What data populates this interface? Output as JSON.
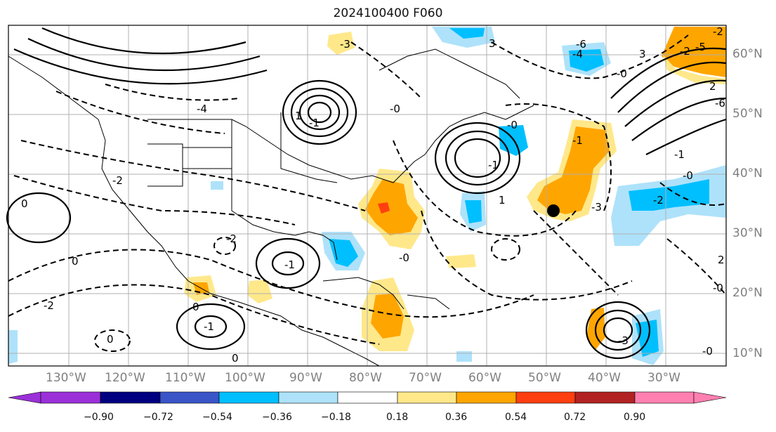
{
  "title": "2024100400 F060",
  "lon_labels": [
    "130°W",
    "120°W",
    "110°W",
    "100°W",
    "90°W",
    "80°W",
    "70°W",
    "60°W",
    "50°W",
    "40°W",
    "30°W"
  ],
  "lat_labels": [
    "60°N",
    "50°N",
    "40°N",
    "30°N",
    "20°N",
    "10°N"
  ],
  "colorbar": {
    "ticks": [
      "−0.90",
      "−0.72",
      "−0.54",
      "−0.36",
      "−0.18",
      "0.18",
      "0.36",
      "0.54",
      "0.72",
      "0.90"
    ],
    "colors": [
      "#9b30d9",
      "#000080",
      "#3a55c8",
      "#00bfff",
      "#aee2fa",
      "#ffffff",
      "#ffe88a",
      "#ffa500",
      "#ff3f10",
      "#b22222",
      "#ff80b0"
    ]
  },
  "contour_labels": [
    "-3",
    "3",
    "-4",
    "-1",
    "-2",
    "0",
    "0",
    "-1",
    "-2",
    "0",
    "-1",
    "0",
    "-6",
    "3",
    "-4",
    "-0",
    "-2",
    "-3",
    "-0",
    "2",
    "-6",
    "-2",
    "-5",
    "-2",
    "-1",
    "1",
    "0",
    "-0",
    "-0",
    "-1",
    "1",
    "-0",
    "-0",
    "-0",
    "2",
    "-2",
    "-3",
    "-1"
  ],
  "colors": {
    "land_outline": "#000000",
    "grid": "#b0b0b0",
    "axis_text": "#808080"
  }
}
